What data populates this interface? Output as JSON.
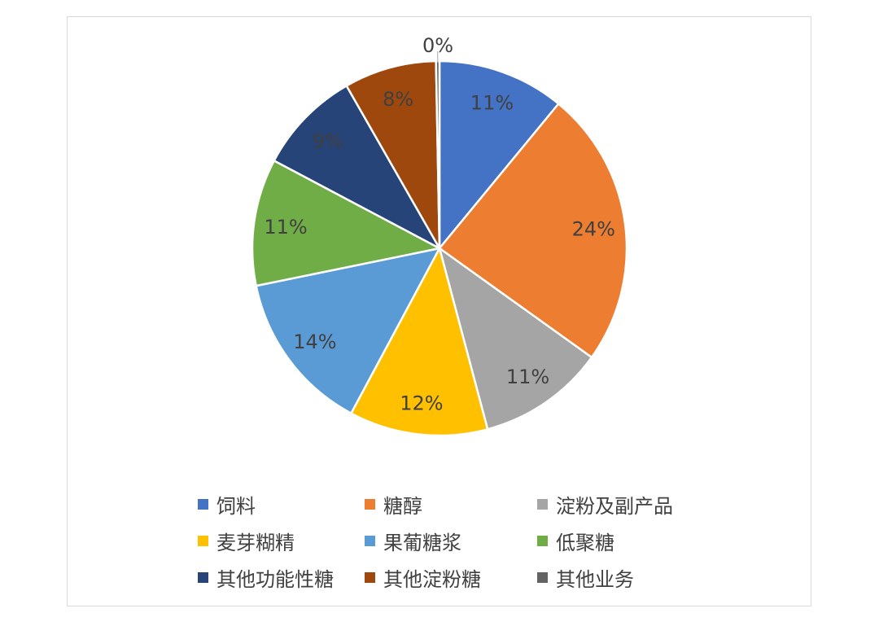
{
  "chart_data": {
    "type": "pie",
    "categories": [
      "饲料",
      "糖醇",
      "淀粉及副产品",
      "麦芽糊精",
      "果葡糖浆",
      "低聚糖",
      "其他功能性糖",
      "其他淀粉糖",
      "其他业务"
    ],
    "values": [
      11,
      24,
      11,
      12,
      14,
      11,
      9,
      8,
      0.3
    ],
    "data_labels": [
      "11%",
      "24%",
      "11%",
      "12%",
      "14%",
      "11%",
      "9%",
      "8%",
      "0%"
    ],
    "colors": [
      "#4472C4",
      "#ED7D31",
      "#A5A5A5",
      "#FFC000",
      "#5B9BD5",
      "#70AD47",
      "#264478",
      "#9E480E",
      "#636363"
    ],
    "legend_position": "bottom",
    "start_angle": "12 o'clock, clockwise"
  }
}
